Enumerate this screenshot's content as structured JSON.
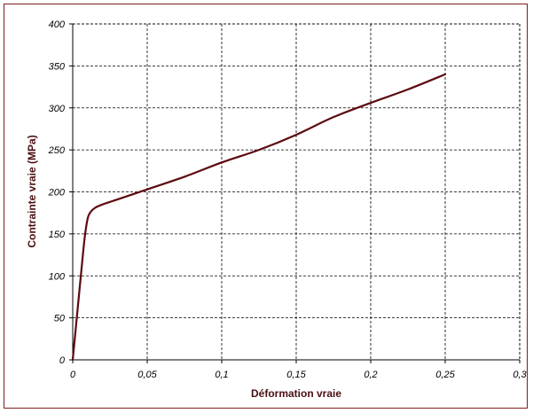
{
  "chart_data": {
    "type": "line",
    "xlabel": "Déformation vraie",
    "ylabel": "Contrainte vraie (MPa)",
    "xlim": [
      0,
      0.3
    ],
    "ylim": [
      0,
      400
    ],
    "x_ticks": [
      "0",
      "0,05",
      "0,1",
      "0,15",
      "0,2",
      "0,25",
      "0,3"
    ],
    "y_ticks": [
      "0",
      "50",
      "100",
      "150",
      "200",
      "250",
      "300",
      "350",
      "400"
    ],
    "grid": true,
    "legend": "none",
    "series": [
      {
        "color": "#5c0a0f",
        "x": [
          0,
          0.003,
          0.006,
          0.008,
          0.01,
          0.012,
          0.015,
          0.02,
          0.03,
          0.05,
          0.075,
          0.1,
          0.125,
          0.15,
          0.175,
          0.2,
          0.225,
          0.25
        ],
        "y": [
          0,
          55,
          110,
          145,
          168,
          176,
          181,
          185,
          191,
          203,
          218,
          235,
          250,
          268,
          289,
          306,
          322,
          340
        ]
      }
    ]
  }
}
